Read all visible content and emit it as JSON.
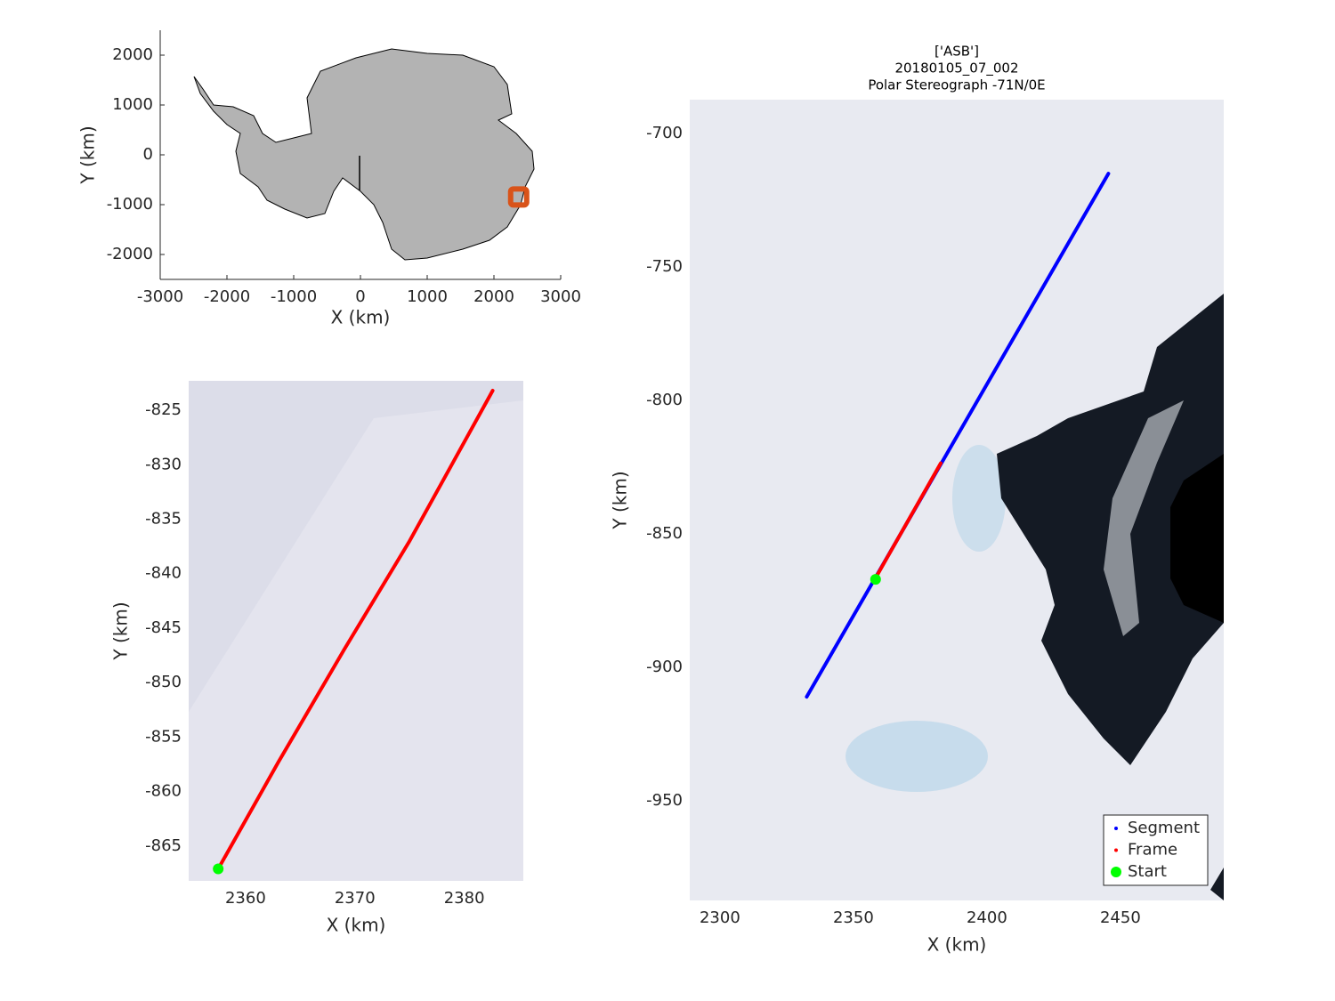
{
  "chart_data": [
    {
      "type": "map",
      "xlabel": "X (km)",
      "ylabel": "Y (km)",
      "xlim": [
        -3000,
        3000
      ],
      "ylim": [
        -2500,
        2500
      ],
      "xticks": [
        -3000,
        -2000,
        -1000,
        0,
        1000,
        2000,
        3000
      ],
      "yticks": [
        -2000,
        -1000,
        0,
        1000,
        2000
      ],
      "marker": {
        "x": 2370,
        "y": -845,
        "color": "#d95319"
      }
    },
    {
      "type": "line",
      "xlabel": "X (km)",
      "ylabel": "Y (km)",
      "xlim": [
        2354.8,
        2385.4
      ],
      "ylim": [
        -868.2,
        -822.3
      ],
      "xticks": [
        2360,
        2370,
        2380
      ],
      "yticks": [
        -865,
        -860,
        -855,
        -850,
        -845,
        -840,
        -835,
        -830,
        -825
      ],
      "series": [
        {
          "color": "#ff0000",
          "style": "line",
          "x": [
            2357.5,
            2363,
            2369,
            2375,
            2382.6
          ],
          "values": [
            -867.1,
            -857.3,
            -847,
            -837,
            -823.2
          ]
        },
        {
          "color": "#00ff00",
          "style": "point",
          "x": [
            2357.5
          ],
          "values": [
            -867.1
          ]
        }
      ]
    },
    {
      "type": "line",
      "title": [
        "['ASB']",
        "20180105_07_002",
        "Polar Stereograph -71N/0E"
      ],
      "xlabel": "X (km)",
      "ylabel": "Y (km)",
      "xlim": [
        2288.7,
        2488.7
      ],
      "ylim": [
        -987.3,
        -687.3
      ],
      "xticks": [
        2300,
        2350,
        2400,
        2450
      ],
      "yticks": [
        -950,
        -900,
        -850,
        -800,
        -750,
        -700
      ],
      "legend": "southeast",
      "series": [
        {
          "name": "Segment",
          "color": "#0000ff",
          "style": "line",
          "x": [
            2332.5,
            2445.5
          ],
          "values": [
            -911,
            -715
          ]
        },
        {
          "name": "Frame",
          "color": "#ff0000",
          "style": "line",
          "x": [
            2358,
            2382.7
          ],
          "values": [
            -867,
            -823.5
          ]
        },
        {
          "name": "Start",
          "color": "#00ff00",
          "style": "point",
          "x": [
            2358.3
          ],
          "values": [
            -867
          ]
        }
      ]
    }
  ]
}
